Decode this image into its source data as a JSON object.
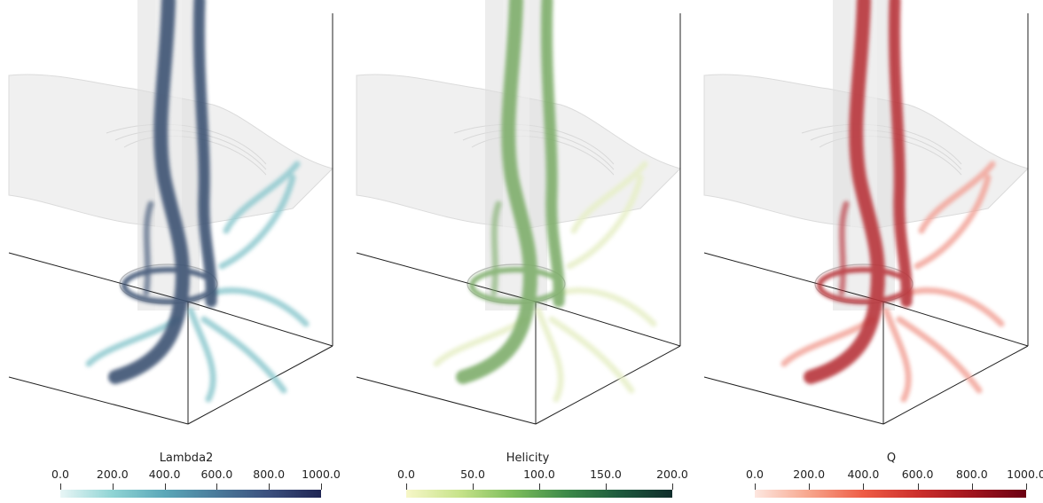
{
  "panels": [
    {
      "name": "lambda2",
      "colorbar": {
        "title": "Lambda2",
        "ticks": [
          "0.0",
          "200.0",
          "400.0",
          "600.0",
          "800.0",
          "1000.0"
        ],
        "colors": [
          "#e8f6f6",
          "#8fd4d4",
          "#5aa7b8",
          "#4a7a9a",
          "#3b4f7d",
          "#1f2553"
        ]
      },
      "tube_color": "#3d5273",
      "wisp_color": "#8fc9cf"
    },
    {
      "name": "helicity",
      "colorbar": {
        "title": "Helicity",
        "ticks": [
          "0.0",
          "50.0",
          "100.0",
          "150.0",
          "200.0"
        ],
        "colors": [
          "#f7f7c8",
          "#c7e38a",
          "#7dbd5b",
          "#3d8a49",
          "#1d5a3d",
          "#0f2d2b"
        ]
      },
      "tube_color": "#7fae6c",
      "wisp_color": "#e7efc8"
    },
    {
      "name": "q",
      "colorbar": {
        "title": "Q",
        "ticks": [
          "0.0",
          "200.0",
          "400.0",
          "600.0",
          "800.0",
          "1000.0"
        ],
        "colors": [
          "#fde7e0",
          "#f7a58c",
          "#ee5c45",
          "#cc2f2c",
          "#a0151e",
          "#6b0012"
        ]
      },
      "tube_color": "#b8343a",
      "wisp_color": "#f2a49a"
    }
  ]
}
